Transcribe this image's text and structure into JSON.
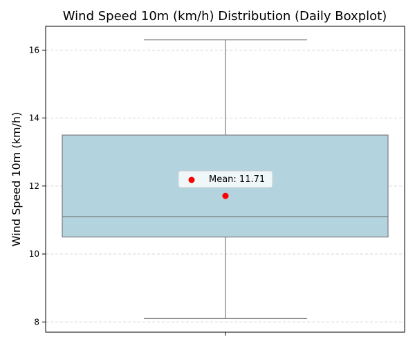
{
  "chart_data": {
    "type": "boxplot",
    "title": "Wind Speed 10m (km/h) Distribution (Daily Boxplot)",
    "xlabel": "",
    "ylabel": "Wind Speed 10m (km/h)",
    "ylim": [
      7.7,
      16.7
    ],
    "yticks": [
      8,
      10,
      12,
      14,
      16
    ],
    "grid": "horizontal-dashed",
    "box": {
      "whisker_low": 8.1,
      "q1": 10.5,
      "median": 11.1,
      "q3": 13.5,
      "whisker_high": 16.3,
      "mean": 11.71
    },
    "legend": {
      "placement": "center",
      "label": "Mean: 11.71"
    }
  },
  "colors": {
    "box_fill": "#b3d4df",
    "box_edge": "#7a7a7a",
    "mean_marker": "#ff0000",
    "grid": "#d6d6d6"
  }
}
